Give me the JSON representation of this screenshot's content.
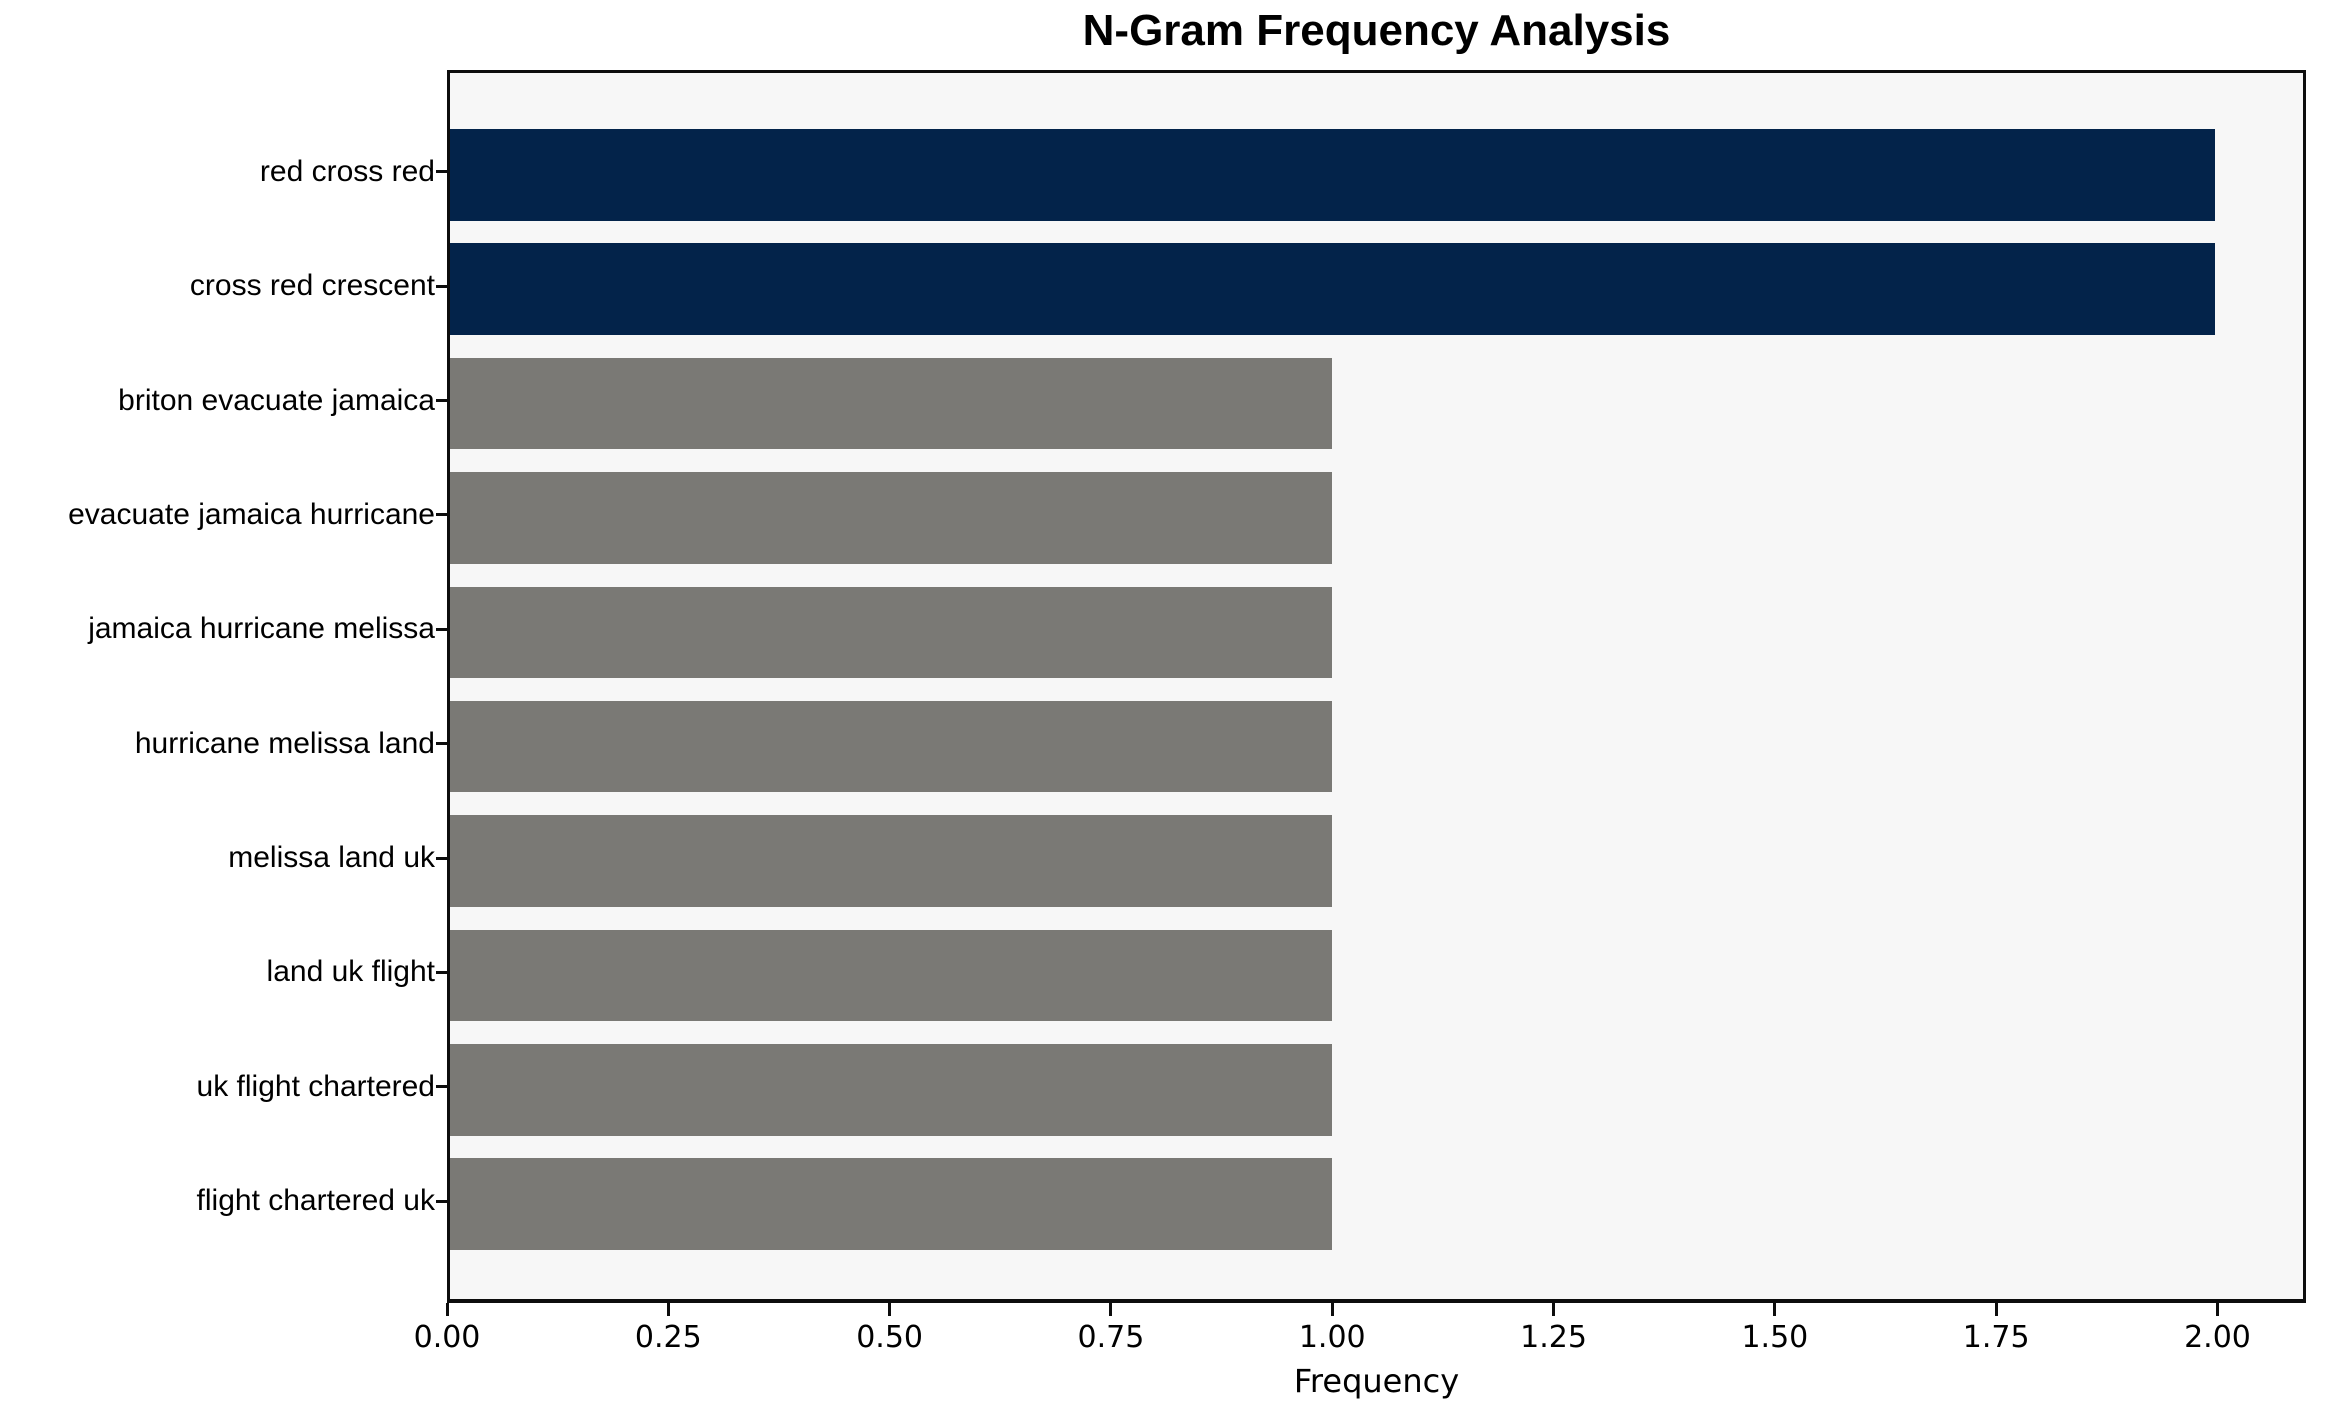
{
  "chart_data": {
    "type": "bar",
    "orientation": "horizontal",
    "title": "N-Gram Frequency Analysis",
    "xlabel": "Frequency",
    "ylabel": "",
    "categories": [
      "red cross red",
      "cross red crescent",
      "briton evacuate jamaica",
      "evacuate jamaica hurricane",
      "jamaica hurricane melissa",
      "hurricane melissa land",
      "melissa land uk",
      "land uk flight",
      "uk flight chartered",
      "flight chartered uk"
    ],
    "values": [
      2,
      2,
      1,
      1,
      1,
      1,
      1,
      1,
      1,
      1
    ],
    "bar_colors": [
      "#03234a",
      "#03234a",
      "#7a7975",
      "#7a7975",
      "#7a7975",
      "#7a7975",
      "#7a7975",
      "#7a7975",
      "#7a7975",
      "#7a7975"
    ],
    "highlight_color": "#03234a",
    "default_color": "#7a7975",
    "x_ticks": [
      0,
      0.25,
      0.5,
      0.75,
      1.0,
      1.25,
      1.5,
      1.75,
      2.0
    ],
    "x_tick_labels": [
      "0.00",
      "0.25",
      "0.50",
      "0.75",
      "1.00",
      "1.25",
      "1.50",
      "1.75",
      "2.00"
    ],
    "xlim": [
      0,
      2.1
    ],
    "grid": false,
    "legend": null,
    "plot_background": "#f7f7f7",
    "figure_background": "#ffffff",
    "bar_count": 10
  }
}
